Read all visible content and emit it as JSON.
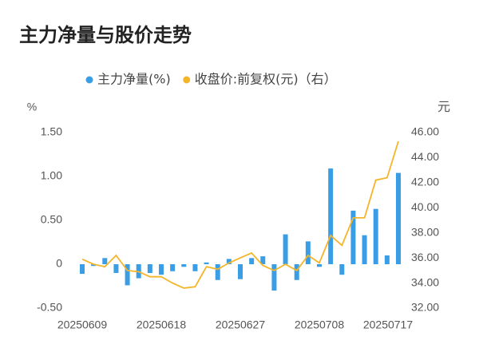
{
  "chart_data": {
    "type": "bar",
    "title": "主力净量与股价走势",
    "y_label": "%",
    "y2_label": "元",
    "categories": [
      "20250609",
      null,
      null,
      null,
      null,
      null,
      null,
      "20250618",
      null,
      null,
      null,
      null,
      null,
      null,
      "20250627",
      null,
      null,
      null,
      null,
      null,
      null,
      "20250708",
      null,
      null,
      null,
      null,
      null,
      null,
      "20250717"
    ],
    "series": [
      {
        "name": "主力净量(%)",
        "type": "bar",
        "color": "#3a9ee6",
        "values": [
          -0.11,
          -0.02,
          0.07,
          -0.1,
          -0.24,
          -0.16,
          -0.1,
          -0.12,
          -0.08,
          -0.03,
          -0.08,
          0.02,
          -0.18,
          0.06,
          -0.17,
          0.07,
          0.09,
          -0.3,
          0.34,
          -0.18,
          0.26,
          -0.03,
          1.09,
          -0.12,
          0.61,
          0.33,
          0.63,
          0.1,
          1.04
        ]
      },
      {
        "name": "收盘价:前复权(元)（右）",
        "type": "line",
        "axis": "y2",
        "color": "#f5b52a",
        "values": [
          35.9,
          35.5,
          35.3,
          36.2,
          35.0,
          34.9,
          34.5,
          34.5,
          34.0,
          33.6,
          33.7,
          35.3,
          35.1,
          35.6,
          36.0,
          36.4,
          35.4,
          35.0,
          35.5,
          35.0,
          36.2,
          35.6,
          37.8,
          37.0,
          39.2,
          39.2,
          42.2,
          42.4,
          45.3
        ]
      }
    ],
    "ylim": [
      -0.5,
      1.5
    ],
    "yticks": [
      {
        "value": -0.5,
        "label": "-0.50"
      },
      0,
      {
        "value": 0.5,
        "label": "0.50"
      },
      {
        "value": 1,
        "label": "1.00"
      },
      {
        "value": 1.5,
        "label": "1.50"
      }
    ],
    "y2lim": [
      32,
      46
    ],
    "y2ticks": [
      {
        "value": 32,
        "label": "32.00"
      },
      {
        "value": 34,
        "label": "34.00"
      },
      {
        "value": 36,
        "label": "36.00"
      },
      {
        "value": 38,
        "label": "38.00"
      },
      {
        "value": 40,
        "label": "40.00"
      },
      {
        "value": 42,
        "label": "42.00"
      },
      {
        "value": 44,
        "label": "44.00"
      },
      {
        "value": 46,
        "label": "46.00"
      }
    ],
    "grid": false,
    "legend": "top"
  }
}
